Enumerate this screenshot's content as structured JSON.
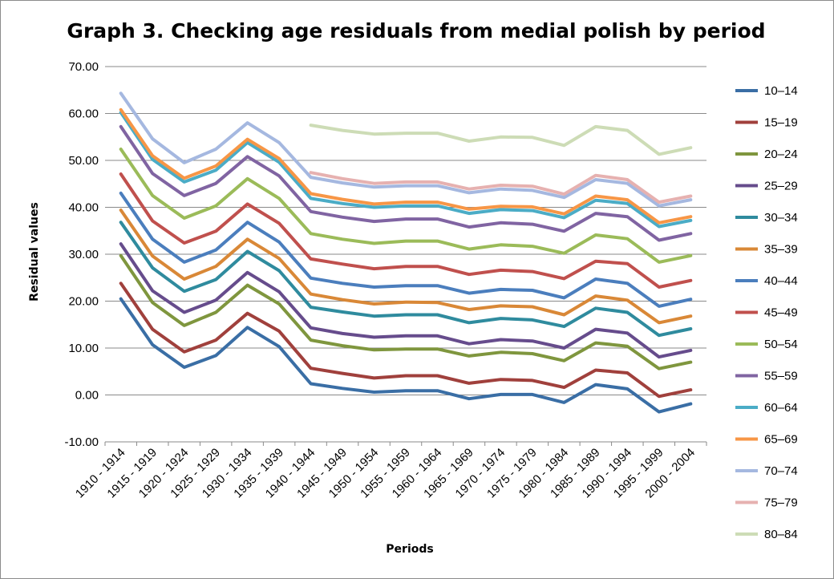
{
  "chart_data": {
    "type": "line",
    "title": "Graph 3. Checking age residuals from medial polish by period",
    "xlabel": "Periods",
    "ylabel": "Residual values",
    "ylim": [
      -10,
      70
    ],
    "yticks": [
      "-10.00",
      "0.00",
      "10.00",
      "20.00",
      "30.00",
      "40.00",
      "50.00",
      "60.00",
      "70.00"
    ],
    "grid": "horizontal",
    "legend_position": "right",
    "categories": [
      "1910 - 1914",
      "1915 - 1919",
      "1920 - 1924",
      "1925 - 1929",
      "1930 - 1934",
      "1935 - 1939",
      "1940 - 1944",
      "1945 - 1949",
      "1950 - 1954",
      "1955 - 1959",
      "1960 - 1964",
      "1965 - 1969",
      "1970 - 1974",
      "1975 - 1979",
      "1980 - 1984",
      "1985 - 1989",
      "1990 - 1994",
      "1995 - 1999",
      "2000 - 2004"
    ],
    "series": [
      {
        "name": "10–14",
        "color": "#3a6ea5",
        "values": [
          20.5,
          10.7,
          5.9,
          8.4,
          14.4,
          10.3,
          2.4,
          1.4,
          0.6,
          0.9,
          0.9,
          -0.8,
          0.1,
          0.1,
          -1.6,
          2.2,
          1.3,
          -3.6,
          -1.9
        ]
      },
      {
        "name": "15–19",
        "color": "#a0403c",
        "values": [
          23.8,
          14.0,
          9.2,
          11.7,
          17.4,
          13.6,
          5.7,
          4.6,
          3.6,
          4.1,
          4.1,
          2.5,
          3.3,
          3.1,
          1.6,
          5.3,
          4.7,
          -0.3,
          1.1
        ]
      },
      {
        "name": "20–24",
        "color": "#7f963e",
        "values": [
          29.7,
          19.7,
          14.8,
          17.6,
          23.4,
          19.4,
          11.7,
          10.5,
          9.6,
          9.8,
          9.8,
          8.3,
          9.1,
          8.8,
          7.3,
          11.1,
          10.4,
          5.6,
          7.0
        ]
      },
      {
        "name": "25–29",
        "color": "#664c8c",
        "values": [
          32.2,
          22.2,
          17.6,
          20.2,
          26.1,
          22.0,
          14.3,
          13.1,
          12.3,
          12.6,
          12.6,
          10.9,
          11.8,
          11.5,
          10.0,
          14.0,
          13.2,
          8.1,
          9.5
        ]
      },
      {
        "name": "30–34",
        "color": "#2f8b9e",
        "values": [
          36.8,
          27.1,
          22.1,
          24.6,
          30.6,
          26.5,
          18.7,
          17.7,
          16.8,
          17.1,
          17.1,
          15.4,
          16.3,
          16.0,
          14.6,
          18.5,
          17.6,
          12.7,
          14.1
        ]
      },
      {
        "name": "35–39",
        "color": "#d98837",
        "values": [
          39.4,
          29.6,
          24.7,
          27.4,
          33.2,
          29.1,
          21.5,
          20.3,
          19.4,
          19.8,
          19.7,
          18.2,
          19.0,
          18.8,
          17.1,
          21.1,
          20.2,
          15.4,
          16.8
        ]
      },
      {
        "name": "40–44",
        "color": "#4b7ebd",
        "values": [
          43.0,
          33.2,
          28.3,
          30.9,
          36.8,
          32.6,
          24.9,
          23.8,
          23.0,
          23.3,
          23.3,
          21.7,
          22.5,
          22.3,
          20.7,
          24.7,
          23.8,
          18.9,
          20.4
        ]
      },
      {
        "name": "45–49",
        "color": "#c0504d",
        "values": [
          47.1,
          37.1,
          32.4,
          34.9,
          40.7,
          36.6,
          29.0,
          27.9,
          26.9,
          27.4,
          27.4,
          25.7,
          26.6,
          26.3,
          24.8,
          28.5,
          28.0,
          23.0,
          24.4
        ]
      },
      {
        "name": "50–54",
        "color": "#9bbb59",
        "values": [
          52.4,
          42.5,
          37.7,
          40.3,
          46.1,
          41.9,
          34.4,
          33.2,
          32.3,
          32.8,
          32.8,
          31.1,
          32.0,
          31.7,
          30.2,
          34.1,
          33.3,
          28.3,
          29.7
        ]
      },
      {
        "name": "55–59",
        "color": "#8064a2",
        "values": [
          57.2,
          47.2,
          42.5,
          45.1,
          50.8,
          46.7,
          39.1,
          37.9,
          37.0,
          37.5,
          37.5,
          35.8,
          36.7,
          36.4,
          34.9,
          38.7,
          38.0,
          33.0,
          34.4
        ]
      },
      {
        "name": "60–64",
        "color": "#4bacc6",
        "values": [
          60.2,
          50.2,
          45.4,
          47.9,
          53.8,
          49.6,
          41.9,
          40.8,
          40.0,
          40.3,
          40.3,
          38.7,
          39.5,
          39.3,
          37.8,
          41.5,
          40.8,
          35.9,
          37.2
        ]
      },
      {
        "name": "65–69",
        "color": "#f79646",
        "values": [
          60.8,
          51.0,
          46.2,
          48.8,
          54.5,
          50.4,
          42.9,
          41.7,
          40.7,
          41.1,
          41.1,
          39.6,
          40.2,
          40.1,
          38.6,
          42.4,
          41.6,
          36.7,
          38.0
        ]
      },
      {
        "name": "70–74",
        "color": "#a5b8e0",
        "values": [
          64.3,
          54.6,
          49.5,
          52.4,
          58.0,
          53.8,
          46.4,
          45.2,
          44.3,
          44.6,
          44.6,
          43.1,
          43.9,
          43.6,
          42.1,
          45.9,
          45.1,
          40.3,
          41.6
        ]
      },
      {
        "name": "75–79",
        "color": "#e6b1b0",
        "values": [
          null,
          null,
          null,
          null,
          null,
          null,
          47.4,
          46.1,
          45.1,
          45.4,
          45.4,
          43.9,
          44.7,
          44.5,
          42.8,
          46.8,
          45.9,
          41.1,
          42.4
        ]
      },
      {
        "name": "80–84",
        "color": "#cddcb6",
        "values": [
          null,
          null,
          null,
          null,
          null,
          null,
          57.5,
          56.4,
          55.6,
          55.8,
          55.8,
          54.1,
          55.0,
          54.9,
          53.2,
          57.2,
          56.4,
          51.3,
          52.7
        ]
      }
    ]
  }
}
